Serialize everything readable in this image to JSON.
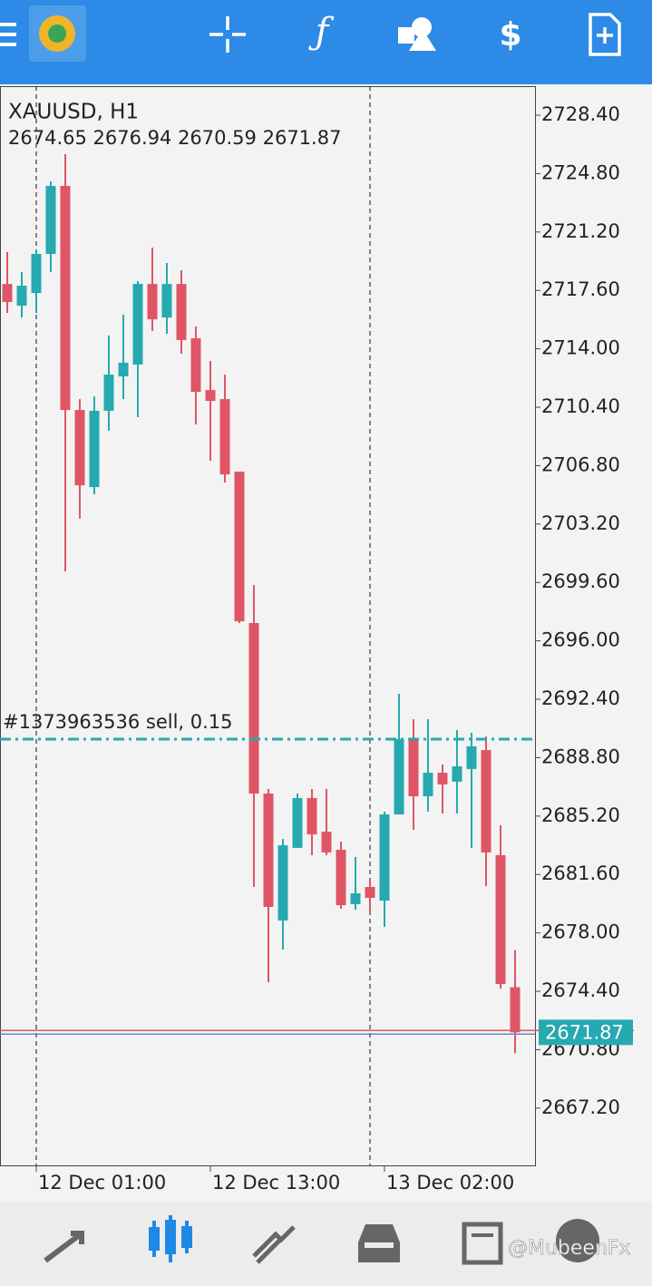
{
  "chart_data": {
    "type": "candlestick",
    "title": "XAUUSD, H1",
    "categories": [
      null,
      null,
      "12 Dec 01:00",
      null,
      null,
      null,
      null,
      null,
      null,
      null,
      null,
      null,
      null,
      null,
      "12 Dec 13:00",
      null,
      null,
      null,
      null,
      null,
      null,
      null,
      null,
      null,
      null,
      null,
      "13 Dec 02:00",
      null,
      null,
      null,
      null,
      null,
      null,
      null,
      null,
      null
    ],
    "open": [
      2718.0,
      2716.66,
      2717.44,
      2719.85,
      2724.04,
      2710.23,
      2705.48,
      2710.18,
      2712.3,
      2713.03,
      2718.0,
      2715.93,
      2718.0,
      2714.65,
      2711.46,
      2710.9,
      2706.43,
      2697.1,
      2686.59,
      2678.76,
      2683.24,
      2686.31,
      2684.24,
      2683.12,
      2679.77,
      2680.83,
      2679.99,
      2685.3,
      2689.94,
      2686.42,
      2687.87,
      2687.32,
      2688.1,
      2689.27,
      2682.79,
      2674.65
    ],
    "high": [
      2719.96,
      2718.73,
      2720.13,
      2724.32,
      2726.0,
      2710.9,
      2711.07,
      2714.82,
      2716.1,
      2718.17,
      2720.24,
      2719.29,
      2718.84,
      2715.38,
      2713.25,
      2712.41,
      2706.43,
      2699.44,
      2686.87,
      2683.79,
      2686.59,
      2686.87,
      2686.87,
      2683.63,
      2682.68,
      2681.28,
      2685.47,
      2692.74,
      2691.17,
      2691.17,
      2688.38,
      2690.5,
      2690.33,
      2690.11,
      2684.63,
      2676.94
    ],
    "low": [
      2716.21,
      2715.93,
      2716.21,
      2718.73,
      2700.28,
      2703.53,
      2705.03,
      2708.95,
      2710.9,
      2709.79,
      2715.1,
      2714.93,
      2713.7,
      2709.34,
      2707.1,
      2705.76,
      2697.1,
      2680.83,
      2674.96,
      2676.97,
      2683.24,
      2682.79,
      2682.79,
      2679.49,
      2679.43,
      2679.32,
      2678.37,
      2685.3,
      2684.35,
      2685.47,
      2685.36,
      2685.36,
      2683.24,
      2680.89,
      2674.57,
      2670.59
    ],
    "close": [
      2716.89,
      2717.89,
      2719.85,
      2724.04,
      2710.23,
      2705.59,
      2710.18,
      2712.41,
      2713.14,
      2718.0,
      2715.82,
      2718.0,
      2714.54,
      2711.35,
      2710.79,
      2706.26,
      2697.21,
      2686.59,
      2679.6,
      2683.4,
      2686.31,
      2684.07,
      2682.96,
      2679.71,
      2680.44,
      2680.16,
      2685.3,
      2689.94,
      2686.42,
      2687.87,
      2687.15,
      2688.27,
      2689.5,
      2682.96,
      2674.85,
      2671.87
    ],
    "up_color": "#26a9b0",
    "down_color": "#e05565",
    "ylim": [
      2663.67,
      2730.19
    ],
    "yticks": [
      {
        "value": 2728.4,
        "label": "2728.40"
      },
      {
        "value": 2724.8,
        "label": "2724.80"
      },
      {
        "value": 2721.2,
        "label": "2721.20"
      },
      {
        "value": 2717.6,
        "label": "2717.60"
      },
      {
        "value": 2714,
        "label": "2714.00"
      },
      {
        "value": 2710.4,
        "label": "2710.40"
      },
      {
        "value": 2706.8,
        "label": "2706.80"
      },
      {
        "value": 2703.2,
        "label": "2703.20"
      },
      {
        "value": 2699.6,
        "label": "2699.60"
      },
      {
        "value": 2696,
        "label": "2696.00"
      },
      {
        "value": 2692.4,
        "label": "2692.40"
      },
      {
        "value": 2688.8,
        "label": "2688.80"
      },
      {
        "value": 2685.2,
        "label": "2685.20"
      },
      {
        "value": 2681.6,
        "label": "2681.60"
      },
      {
        "value": 2678,
        "label": "2678.00"
      },
      {
        "value": 2674.4,
        "label": "2674.40"
      },
      {
        "value": 2670.8,
        "label": "2670.80"
      },
      {
        "value": 2667.2,
        "label": "2667.20"
      }
    ],
    "order": {
      "label": "#1373963536 sell, 0.15",
      "price": 2689.94
    }
  },
  "watermark": "@MubeenFx"
}
